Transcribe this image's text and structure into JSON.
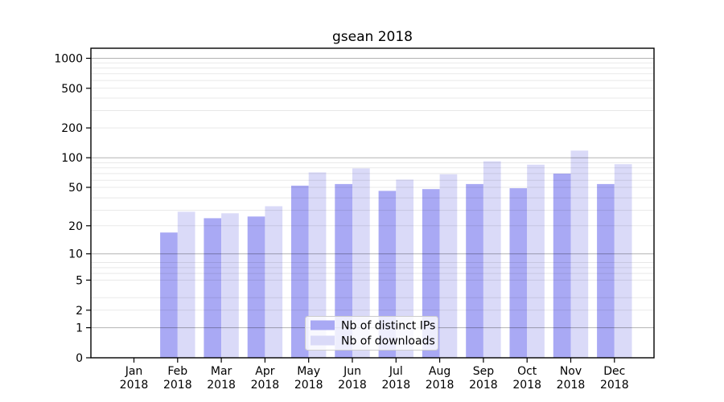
{
  "chart_data": {
    "type": "bar",
    "title": "gsean 2018",
    "categories": [
      "Jan 2018",
      "Feb 2018",
      "Mar 2018",
      "Apr 2018",
      "May 2018",
      "Jun 2018",
      "Jul 2018",
      "Aug 2018",
      "Sep 2018",
      "Oct 2018",
      "Nov 2018",
      "Dec 2018"
    ],
    "series": [
      {
        "name": "Nb of distinct IPs",
        "color": "#a9a9f4",
        "values": [
          0,
          17,
          24,
          25,
          52,
          54,
          46,
          48,
          54,
          49,
          69,
          54
        ]
      },
      {
        "name": "Nb of downloads",
        "color": "#dadaf8",
        "values": [
          0,
          28,
          27,
          32,
          71,
          78,
          60,
          68,
          92,
          85,
          118,
          86
        ]
      }
    ],
    "xlabel": "",
    "ylabel": "",
    "yscale": "log1p",
    "ylim": [
      0,
      1280
    ],
    "y_ticks": [
      0,
      1,
      2,
      5,
      10,
      20,
      50,
      100,
      200,
      500,
      1000
    ],
    "y_major_gridlines": [
      1,
      10,
      100,
      1000
    ],
    "grid": "on (drawn above bars)",
    "legend_position": "lower center",
    "colors": {
      "background": "#ffffff",
      "axis": "#000000",
      "major_grid": "#b3b3b3",
      "minor_grid": "#e8e8e8",
      "legend_border": "#cccccc",
      "legend_background": "rgba(255,255,255,0.8)",
      "text": "#000000"
    }
  }
}
